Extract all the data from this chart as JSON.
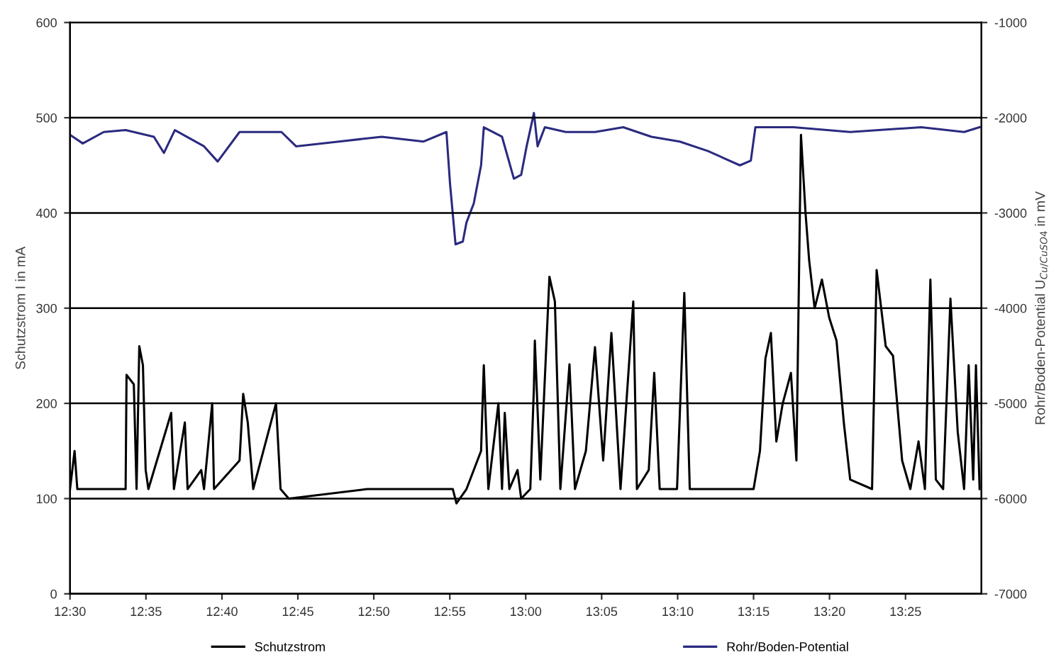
{
  "chart_data": {
    "type": "line",
    "ylabel": "Schutzstrom I in mA",
    "y2label": "Rohr/Boden-Potential U$_{Cu/CuSO4}$ in mV",
    "xlim": [
      12.5,
      13.5
    ],
    "xticks": [
      {
        "value": 12.5,
        "label": "12:30"
      },
      {
        "value": 12.5833,
        "label": "12:35"
      },
      {
        "value": 12.6667,
        "label": "12:40"
      },
      {
        "value": 12.75,
        "label": "12:45"
      },
      {
        "value": 12.8333,
        "label": "12:50"
      },
      {
        "value": 12.9167,
        "label": "12:55"
      },
      {
        "value": 13.0,
        "label": "13:00"
      },
      {
        "value": 13.0833,
        "label": "13:05"
      },
      {
        "value": 13.1667,
        "label": "13:10"
      },
      {
        "value": 13.25,
        "label": "13:15"
      },
      {
        "value": 13.3333,
        "label": "13:20"
      },
      {
        "value": 13.4167,
        "label": "13:25"
      }
    ],
    "ylim": [
      0,
      600
    ],
    "yticks": [
      0,
      100,
      200,
      300,
      400,
      500,
      600
    ],
    "y2lim": [
      -7000,
      -1000
    ],
    "y2ticks": [
      -7000,
      -6000,
      -5000,
      -4000,
      -3000,
      -2000,
      -1000
    ],
    "grid": "y",
    "legend": "bottom",
    "marker": "none",
    "line_style": "solid",
    "series": [
      {
        "name": "Schutzstrom",
        "color": "#000000",
        "x": [
          12.5,
          12.505,
          12.508,
          12.561,
          12.562,
          12.57,
          12.573,
          12.576,
          12.58,
          12.583,
          12.586,
          12.611,
          12.614,
          12.626,
          12.629,
          12.644,
          12.647,
          12.656,
          12.658,
          12.686,
          12.69,
          12.695,
          12.701,
          12.726,
          12.731,
          12.74,
          12.826,
          12.92,
          12.924,
          12.935,
          12.951,
          12.954,
          12.959,
          12.97,
          12.974,
          12.977,
          12.982,
          12.991,
          12.995,
          13.005,
          13.009,
          13.01,
          13.016,
          13.026,
          13.032,
          13.038,
          13.048,
          13.054,
          13.066,
          13.076,
          13.085,
          13.094,
          13.104,
          13.118,
          13.122,
          13.135,
          13.141,
          13.147,
          13.166,
          13.174,
          13.18,
          13.216,
          13.25,
          13.257,
          13.263,
          13.269,
          13.275,
          13.282,
          13.291,
          13.297,
          13.302,
          13.307,
          13.311,
          13.317,
          13.325,
          13.333,
          13.341,
          13.349,
          13.356,
          13.38,
          13.385,
          13.395,
          13.403,
          13.413,
          13.422,
          13.431,
          13.438,
          13.444,
          13.45,
          13.458,
          13.466,
          13.474,
          13.481,
          13.486,
          13.491,
          13.494,
          13.498
        ],
        "values": [
          110,
          150,
          110,
          110,
          230,
          220,
          110,
          260,
          240,
          130,
          110,
          190,
          110,
          180,
          110,
          130,
          110,
          200,
          110,
          140,
          210,
          180,
          110,
          200,
          110,
          100,
          110,
          110,
          95,
          110,
          150,
          240,
          110,
          200,
          110,
          190,
          110,
          130,
          100,
          110,
          217,
          266,
          120,
          333,
          307,
          110,
          241,
          110,
          150,
          259,
          140,
          274,
          110,
          307,
          110,
          130,
          232,
          110,
          110,
          316,
          110,
          110,
          110,
          150,
          247,
          274,
          160,
          200,
          232,
          140,
          482,
          400,
          350,
          300,
          330,
          290,
          266,
          180,
          120,
          110,
          340,
          260,
          250,
          140,
          110,
          160,
          110,
          330,
          120,
          110,
          310,
          170,
          110,
          240,
          120,
          240,
          110
        ]
      },
      {
        "name": "Rohr/Boden-Potential",
        "color": "#2b2a7f",
        "axis": "y2",
        "x": [
          12.5,
          12.514,
          12.537,
          12.561,
          12.592,
          12.603,
          12.615,
          12.647,
          12.662,
          12.686,
          12.732,
          12.748,
          12.795,
          12.842,
          12.888,
          12.913,
          12.917,
          12.923,
          12.931,
          12.935,
          12.943,
          12.951,
          12.954,
          12.974,
          12.987,
          12.995,
          13.001,
          13.009,
          13.013,
          13.021,
          13.044,
          13.076,
          13.107,
          13.138,
          13.169,
          13.2,
          13.235,
          13.247,
          13.252,
          13.294,
          13.356,
          13.434,
          13.481,
          13.498
        ],
        "values": [
          -2180,
          -2270,
          -2150,
          -2130,
          -2200,
          -2370,
          -2130,
          -2300,
          -2460,
          -2150,
          -2150,
          -2300,
          -2250,
          -2200,
          -2250,
          -2150,
          -2700,
          -3330,
          -3300,
          -3100,
          -2900,
          -2500,
          -2100,
          -2200,
          -2640,
          -2600,
          -2300,
          -1950,
          -2300,
          -2100,
          -2150,
          -2150,
          -2100,
          -2200,
          -2250,
          -2350,
          -2500,
          -2450,
          -2100,
          -2100,
          -2150,
          -2100,
          -2150,
          -2100
        ]
      }
    ]
  }
}
